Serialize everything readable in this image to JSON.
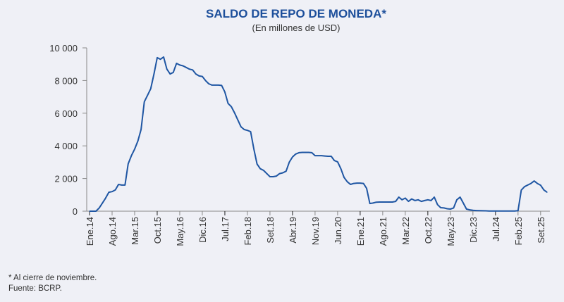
{
  "chart_data": {
    "type": "line",
    "title": "SALDO DE REPO DE MONEDA*",
    "subtitle": "(En millones de USD)",
    "xlabel": "",
    "ylabel": "",
    "ylim": [
      0,
      10000
    ],
    "yticks": [
      0,
      2000,
      4000,
      6000,
      8000,
      10000
    ],
    "ytick_labels": [
      "0",
      "2 000",
      "4 000",
      "6 000",
      "8 000",
      "10 000"
    ],
    "xtick_labels": [
      "Ene.14",
      "Ago.14",
      "Mar.15",
      "Oct.15",
      "May.16",
      "Dic.16",
      "Jul.17",
      "Feb.18",
      "Set.18",
      "Abr.19",
      "Nov.19",
      "Jun.20",
      "Ene.21",
      "Ago.21",
      "Mar.22",
      "Oct.22",
      "May.23",
      "Dic.23",
      "Jul.24",
      "Feb.25",
      "Set.25"
    ],
    "xtick_every_months": 7,
    "start": "2014-01",
    "frequency": "monthly",
    "grid": false,
    "series": [
      {
        "name": "Saldo de repo de moneda",
        "color": "#1f56a3",
        "values": [
          0,
          0,
          0,
          200,
          500,
          800,
          1160,
          1200,
          1300,
          1640,
          1600,
          1600,
          2900,
          3400,
          3800,
          4300,
          5000,
          6700,
          7100,
          7500,
          8400,
          9400,
          9300,
          9440,
          8700,
          8400,
          8500,
          9050,
          8950,
          8900,
          8800,
          8700,
          8650,
          8400,
          8280,
          8250,
          8000,
          7800,
          7720,
          7720,
          7720,
          7700,
          7300,
          6600,
          6400,
          6030,
          5600,
          5170,
          5000,
          4950,
          4870,
          3800,
          2890,
          2600,
          2500,
          2300,
          2110,
          2110,
          2150,
          2300,
          2350,
          2450,
          3000,
          3320,
          3500,
          3580,
          3600,
          3600,
          3600,
          3580,
          3400,
          3400,
          3400,
          3380,
          3360,
          3360,
          3100,
          3020,
          2600,
          2070,
          1800,
          1640,
          1700,
          1720,
          1720,
          1700,
          1400,
          470,
          500,
          550,
          560,
          560,
          560,
          560,
          560,
          600,
          860,
          700,
          800,
          600,
          750,
          650,
          700,
          600,
          650,
          700,
          650,
          860,
          400,
          215,
          200,
          150,
          130,
          200,
          700,
          860,
          500,
          130,
          80,
          50,
          40,
          30,
          25,
          20,
          15,
          10,
          10,
          10,
          10,
          10,
          10,
          10,
          10,
          30,
          1290,
          1500,
          1600,
          1700,
          1850,
          1700,
          1590,
          1300,
          1160
        ]
      }
    ]
  },
  "footnotes": [
    "* Al cierre de noviembre.",
    "Fuente: BCRP."
  ]
}
